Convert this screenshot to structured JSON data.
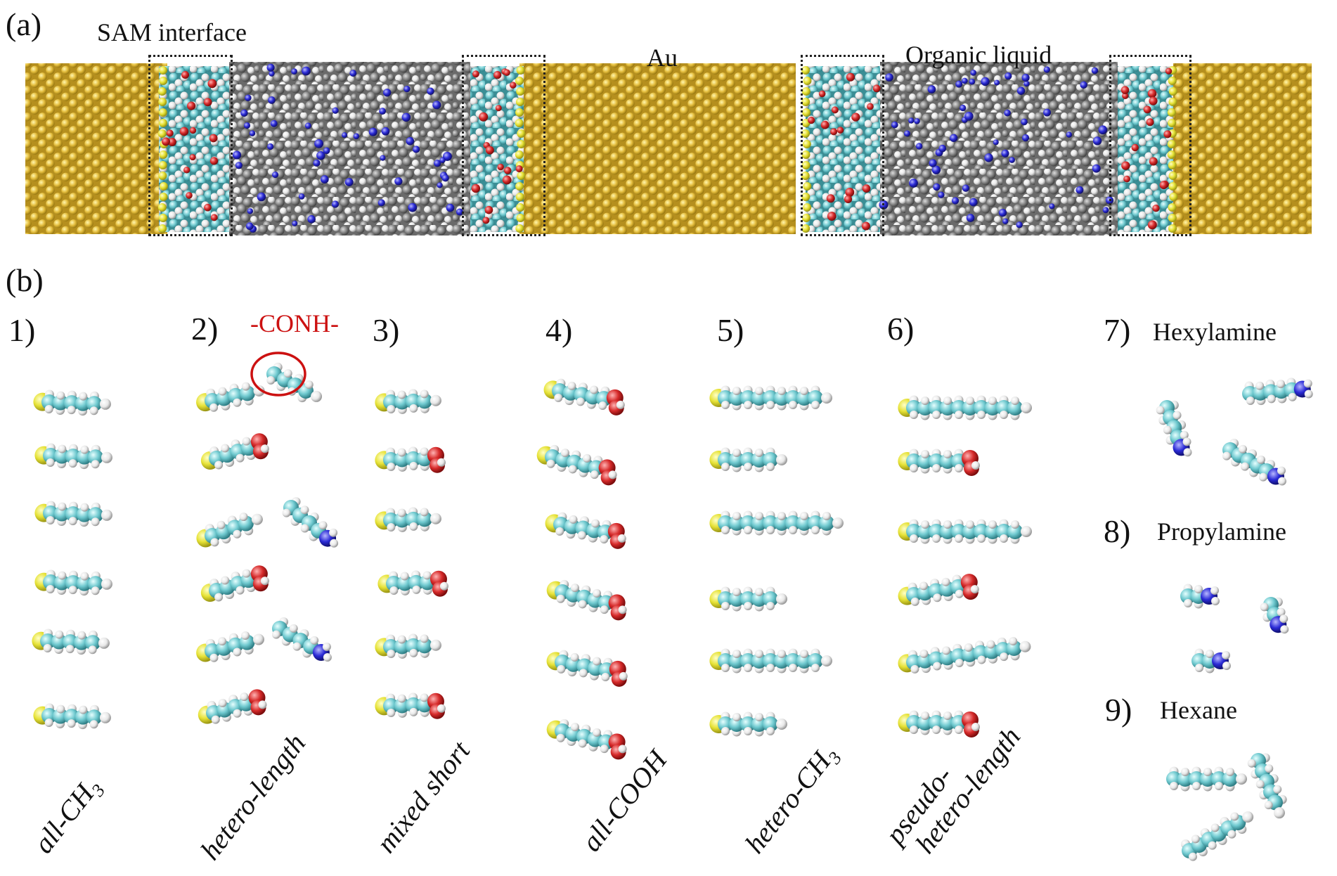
{
  "panel_a": {
    "label": "(a)",
    "sam_interface": "SAM interface",
    "au": "Au",
    "organic_liquid": "Organic liquid"
  },
  "panel_b": {
    "label": "(b)",
    "conh_marker": "-CONH-",
    "groups": [
      {
        "num": "1)",
        "name": "all-CH",
        "sub": "3"
      },
      {
        "num": "2)",
        "name": "hetero-length"
      },
      {
        "num": "3)",
        "name": "mixed short"
      },
      {
        "num": "4)",
        "name": "all-COOH"
      },
      {
        "num": "5)",
        "name": "hetero-CH",
        "sub": "3"
      },
      {
        "num": "6)",
        "name_line1": "pseudo-",
        "name_line2": "hetero-length"
      }
    ],
    "liquids": [
      {
        "num": "7)",
        "name": "Hexylamine"
      },
      {
        "num": "8)",
        "name": "Propylamine"
      },
      {
        "num": "9)",
        "name": "Hexane"
      }
    ]
  },
  "colors": {
    "gold": "#e3bb3a",
    "sulfur": "#e8e23a",
    "carbon": "#6fc9cf",
    "hydrogen": "#f2f2f2",
    "oxygen": "#d62a2a",
    "nitrogen": "#2b2bd6",
    "liquid_grey": "#8c8c8c",
    "accent_red": "#cc1111"
  }
}
